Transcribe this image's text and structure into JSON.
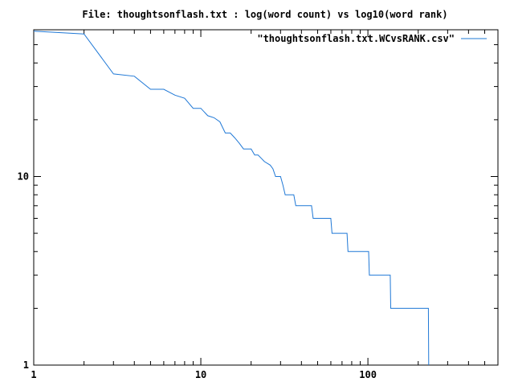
{
  "chart_data": {
    "type": "line",
    "title": "File: thoughtsonflash.txt : log(word count) vs log10(word rank)",
    "xlabel": "",
    "ylabel": "",
    "xscale": "log",
    "yscale": "log",
    "xlim": [
      1,
      600
    ],
    "ylim": [
      1,
      60
    ],
    "grid": false,
    "legend": "top-right",
    "series_color": "#1f78d6",
    "xticks": [
      {
        "value": 1,
        "label": "1"
      },
      {
        "value": 10,
        "label": "10"
      },
      {
        "value": 100,
        "label": "100"
      }
    ],
    "yticks": [
      {
        "value": 1,
        "label": "1"
      },
      {
        "value": 10,
        "label": "10"
      }
    ],
    "series": [
      {
        "name": "\"thoughtsonflash.txt.WCvsRANK.csv\"",
        "step": true,
        "points": [
          [
            1,
            59
          ],
          [
            2,
            57
          ],
          [
            3,
            35
          ],
          [
            4,
            34
          ],
          [
            5,
            29
          ],
          [
            6,
            29
          ],
          [
            7,
            27
          ],
          [
            8,
            26
          ],
          [
            9,
            23
          ],
          [
            10,
            23
          ],
          [
            11,
            21
          ],
          [
            12,
            20.5
          ],
          [
            13,
            19.5
          ],
          [
            14,
            17
          ],
          [
            15,
            17
          ],
          [
            16,
            16
          ],
          [
            17,
            15
          ],
          [
            18,
            14
          ],
          [
            20,
            14
          ],
          [
            21,
            13
          ],
          [
            22,
            13
          ],
          [
            23,
            12.5
          ],
          [
            24,
            12
          ],
          [
            26,
            11.5
          ],
          [
            27,
            11
          ],
          [
            28,
            10
          ],
          [
            30,
            10
          ],
          [
            31,
            9
          ],
          [
            32,
            8
          ],
          [
            36,
            8
          ],
          [
            37,
            7
          ],
          [
            46,
            7
          ],
          [
            47,
            6
          ],
          [
            60,
            6
          ],
          [
            61,
            5
          ],
          [
            75,
            5
          ],
          [
            76,
            4
          ],
          [
            101,
            4
          ],
          [
            102,
            3
          ],
          [
            136,
            3
          ],
          [
            137,
            2
          ],
          [
            230,
            2
          ],
          [
            231,
            1
          ]
        ]
      }
    ]
  }
}
